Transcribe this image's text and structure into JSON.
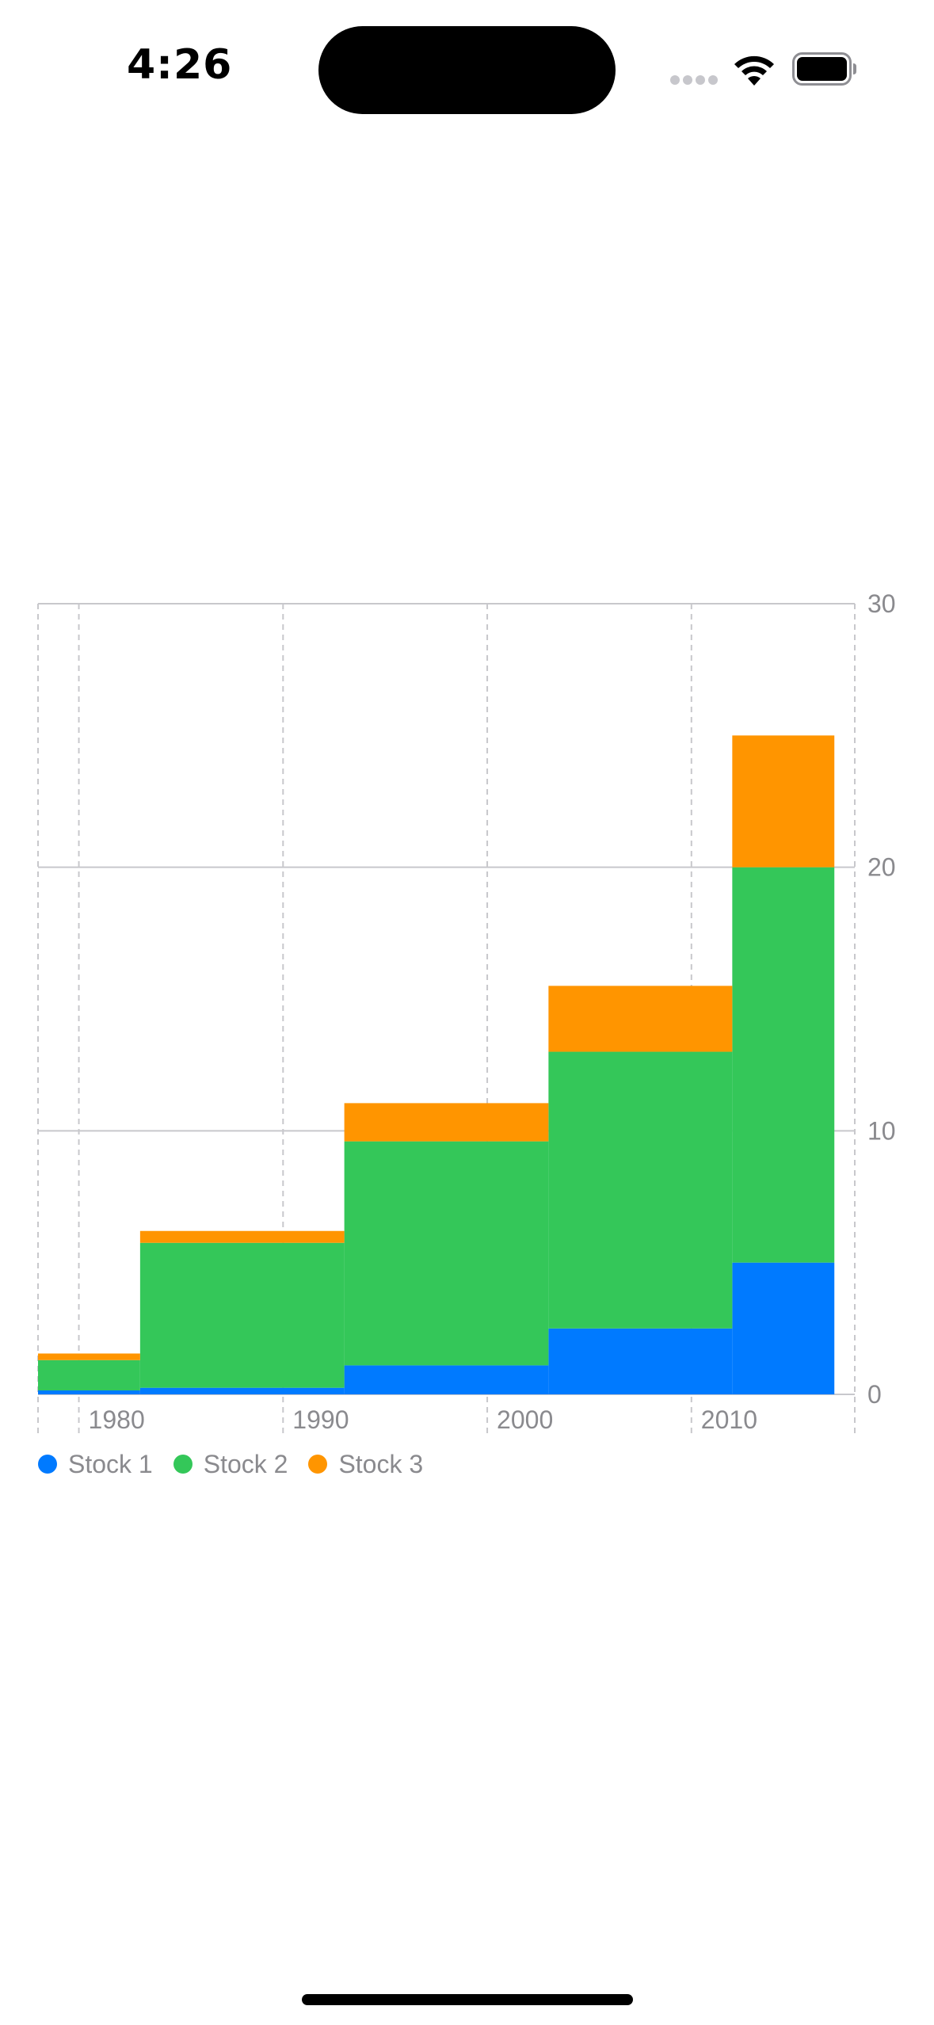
{
  "status_bar": {
    "time": "4:26"
  },
  "icons": {
    "signal": "cellular-signal-icon",
    "wifi": "wifi-icon",
    "battery": "battery-icon"
  },
  "chart_data": {
    "type": "area",
    "subtype": "stacked-step",
    "x": [
      1978,
      1983,
      1993,
      2003,
      2012
    ],
    "x_end": 2017,
    "x_ticks": [
      "1980",
      "1990",
      "2000",
      "2010"
    ],
    "x_tick_values": [
      1980,
      1990,
      2000,
      2010
    ],
    "xlim": [
      1978,
      2018
    ],
    "ylim": [
      0,
      30
    ],
    "y_ticks": [
      "0",
      "10",
      "20",
      "30"
    ],
    "y_tick_values": [
      0,
      10,
      20,
      30
    ],
    "y_axis_side": "right",
    "series": [
      {
        "name": "Stock 1",
        "color": "#007AFF",
        "values": [
          0.15,
          0.25,
          1.1,
          2.5,
          5.0
        ]
      },
      {
        "name": "Stock 2",
        "color": "#34C759",
        "values": [
          1.15,
          5.5,
          8.5,
          10.5,
          15.0
        ]
      },
      {
        "name": "Stock 3",
        "color": "#FF9500",
        "values": [
          0.25,
          0.45,
          1.45,
          2.5,
          5.0
        ]
      }
    ],
    "grid": {
      "horizontal": true,
      "vertical": true,
      "vertical_dashed": true
    },
    "legend_position": "bottom-left"
  }
}
